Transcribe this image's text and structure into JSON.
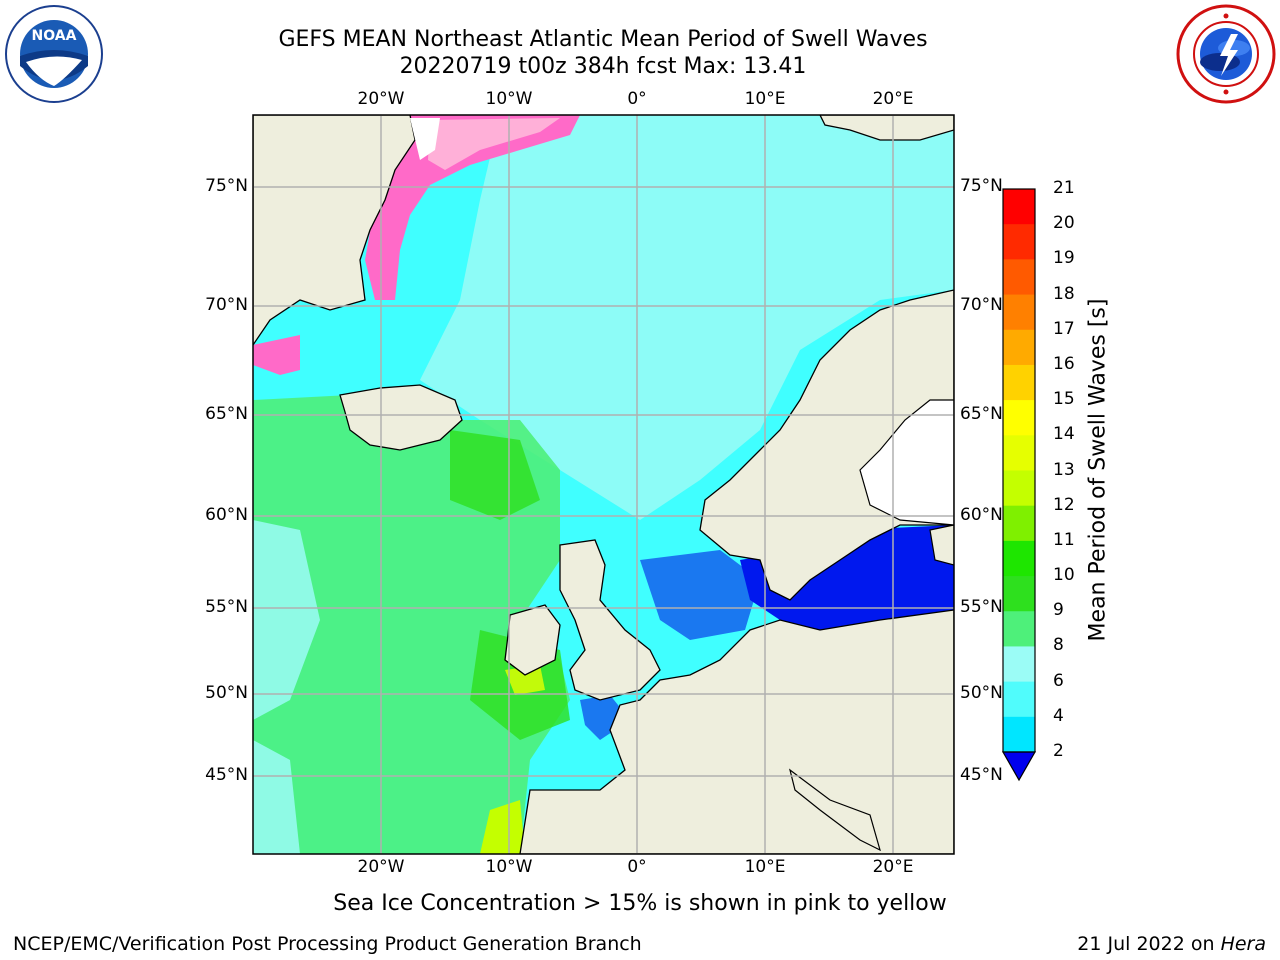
{
  "header": {
    "title_line1": "GEFS MEAN Northeast Atlantic Mean Period of Swell Waves",
    "title_line2": "20220719 t00z 384h fcst   Max: 13.41"
  },
  "logos": {
    "noaa": {
      "text": "NOAA",
      "ring_text": "NATIONAL OCEANIC AND ATMOSPHERIC ADMINISTRATION · U.S. DEPARTMENT OF COMMERCE"
    },
    "nws": {
      "ring_text": "NATIONAL WEATHER SERVICE"
    }
  },
  "map": {
    "lon_labels_top": [
      "20°W",
      "10°W",
      "0°",
      "10°E",
      "20°E"
    ],
    "lon_labels_bottom": [
      "20°W",
      "10°W",
      "0°",
      "10°E",
      "20°E"
    ],
    "lat_labels_left": [
      "75°N",
      "70°N",
      "65°N",
      "60°N",
      "55°N",
      "50°N",
      "45°N"
    ],
    "lat_labels_right": [
      "75°N",
      "70°N",
      "65°N",
      "60°N",
      "55°N",
      "50°N",
      "45°N"
    ],
    "colors": {
      "land": "#eeeedd",
      "grid": "#b0b0b0",
      "ocean_main": "#40ffff",
      "ocean_light": "#9bfcf6",
      "green": "#4ef07a",
      "blue": "#1a78f0",
      "dark_blue": "#0018ee",
      "ice": "#ff6ac8"
    }
  },
  "colorbar": {
    "label": "Mean Period of Swell Waves [s]",
    "ticks": [
      "21",
      "20",
      "19",
      "18",
      "17",
      "16",
      "15",
      "14",
      "13",
      "12",
      "11",
      "10",
      "9",
      "8",
      "6",
      "4",
      "2"
    ],
    "colors": [
      "#ff0000",
      "#ff2a00",
      "#ff5a00",
      "#ff8000",
      "#ffaa00",
      "#ffd200",
      "#ffff00",
      "#e6ff00",
      "#c4ff00",
      "#7ff000",
      "#1ee600",
      "#2ee01e",
      "#4ef07a",
      "#9bfcf6",
      "#50fcfc",
      "#00e6ff",
      "#1e78ff"
    ],
    "extend_color": "#0000ee"
  },
  "annotation": "Sea Ice Concentration > 15% is shown in pink to yellow",
  "footer": {
    "left": "NCEP/EMC/Verification Post Processing Product Generation Branch",
    "date": "21 Jul 2022 on ",
    "machine": "Hera"
  }
}
